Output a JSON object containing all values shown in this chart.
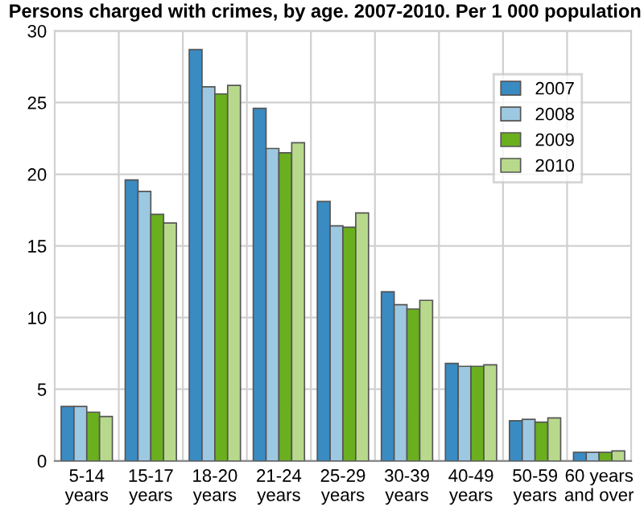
{
  "chart_data": {
    "type": "bar",
    "title": "Persons charged with crimes, by age. 2007-2010. Per 1 000 population",
    "categories": [
      "5-14\nyears",
      "15-17\nyears",
      "18-20\nyears",
      "21-24\nyears",
      "25-29\nyears",
      "30-39\nyears",
      "40-49\nyears",
      "50-59\nyears",
      "60 years\nand over"
    ],
    "series": [
      {
        "name": "2007",
        "color": "#3a8bc2",
        "values": [
          3.8,
          19.6,
          28.7,
          24.6,
          18.1,
          11.8,
          6.8,
          2.8,
          0.6
        ]
      },
      {
        "name": "2008",
        "color": "#9dc8e2",
        "values": [
          3.8,
          18.8,
          26.1,
          21.8,
          16.4,
          10.9,
          6.6,
          2.9,
          0.6
        ]
      },
      {
        "name": "2009",
        "color": "#6aaf1e",
        "values": [
          3.4,
          17.2,
          25.6,
          21.5,
          16.3,
          10.6,
          6.6,
          2.7,
          0.6
        ]
      },
      {
        "name": "2010",
        "color": "#b8d98c",
        "values": [
          3.1,
          16.6,
          26.2,
          22.2,
          17.3,
          11.2,
          6.7,
          3.0,
          0.7
        ]
      }
    ],
    "ylim": [
      0,
      30
    ],
    "yticks": [
      0,
      5,
      10,
      15,
      20,
      25,
      30
    ],
    "grid": true,
    "legend": "top right"
  }
}
